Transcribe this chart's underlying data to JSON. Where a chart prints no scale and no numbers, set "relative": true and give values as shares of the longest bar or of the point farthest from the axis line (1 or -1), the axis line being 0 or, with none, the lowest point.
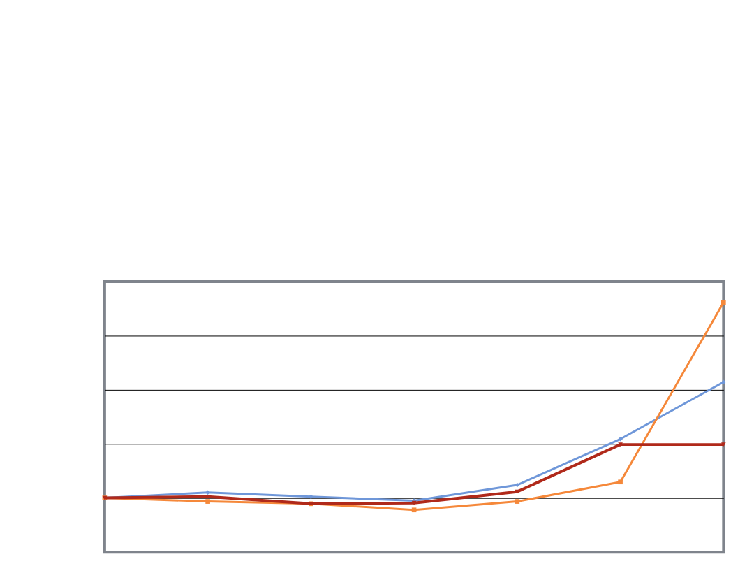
{
  "chart_data": {
    "type": "line",
    "relative": true,
    "grid": "y",
    "categories": [
      null,
      null,
      null,
      null,
      null,
      null,
      null
    ],
    "series": [
      {
        "color": "#6f97d9",
        "marker": "diamond",
        "values": [
          0.217,
          0.239,
          0.222,
          0.206,
          0.269,
          0.453,
          0.681
        ]
      },
      {
        "color": "#f5883a",
        "marker": "square",
        "values": [
          0.217,
          0.203,
          0.194,
          0.169,
          0.203,
          0.281,
          1
        ]
      },
      {
        "color": "#b0291a",
        "marker": "triangle",
        "values": [
          0.217,
          0.222,
          0.194,
          0.197,
          0.242,
          0.431,
          0.431
        ]
      }
    ]
  }
}
